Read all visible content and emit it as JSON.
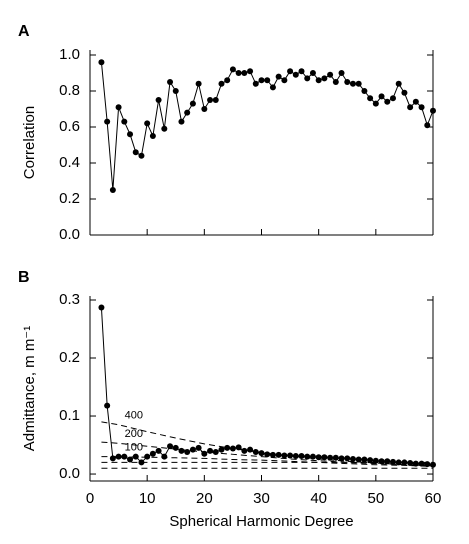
{
  "chart_data": [
    {
      "type": "line",
      "panel_label": "A",
      "ylabel": "Correlation",
      "x": [
        2,
        3,
        4,
        5,
        6,
        7,
        8,
        9,
        10,
        11,
        12,
        13,
        14,
        15,
        16,
        17,
        18,
        19,
        20,
        21,
        22,
        23,
        24,
        25,
        26,
        27,
        28,
        29,
        30,
        31,
        32,
        33,
        34,
        35,
        36,
        37,
        38,
        39,
        40,
        41,
        42,
        43,
        44,
        45,
        46,
        47,
        48,
        49,
        50,
        51,
        52,
        53,
        54,
        55,
        56,
        57,
        58,
        59,
        60
      ],
      "series": [
        {
          "color": "#000000",
          "markers": true,
          "values": [
            0.96,
            0.63,
            0.25,
            0.71,
            0.63,
            0.56,
            0.46,
            0.44,
            0.62,
            0.55,
            0.75,
            0.59,
            0.85,
            0.8,
            0.63,
            0.68,
            0.73,
            0.84,
            0.7,
            0.75,
            0.75,
            0.84,
            0.86,
            0.92,
            0.9,
            0.9,
            0.91,
            0.84,
            0.86,
            0.86,
            0.82,
            0.88,
            0.86,
            0.91,
            0.89,
            0.91,
            0.87,
            0.9,
            0.86,
            0.87,
            0.89,
            0.85,
            0.9,
            0.85,
            0.84,
            0.84,
            0.8,
            0.76,
            0.73,
            0.77,
            0.74,
            0.76,
            0.84,
            0.79,
            0.71,
            0.74,
            0.71,
            0.61,
            0.69
          ]
        }
      ],
      "xlim": [
        0,
        60
      ],
      "xticks": [
        0,
        10,
        20,
        30,
        40,
        50,
        60
      ],
      "show_xtick_labels": false,
      "ylim": [
        0,
        1.0
      ],
      "yticks": [
        {
          "value": 0,
          "label": "0.0"
        },
        0.2,
        0.4,
        0.6,
        0.8,
        {
          "value": 1,
          "label": "1.0"
        }
      ]
    },
    {
      "type": "line",
      "panel_label": "B",
      "ylabel": "Admittance, m m⁻¹",
      "xlabel": "Spherical Harmonic Degree",
      "x": [
        2,
        3,
        4,
        5,
        6,
        7,
        8,
        9,
        10,
        11,
        12,
        13,
        14,
        15,
        16,
        17,
        18,
        19,
        20,
        21,
        22,
        23,
        24,
        25,
        26,
        27,
        28,
        29,
        30,
        31,
        32,
        33,
        34,
        35,
        36,
        37,
        38,
        39,
        40,
        41,
        42,
        43,
        44,
        45,
        46,
        47,
        48,
        49,
        50,
        51,
        52,
        53,
        54,
        55,
        56,
        57,
        58,
        59,
        60
      ],
      "series": [
        {
          "color": "#000000",
          "markers": true,
          "values": [
            0.287,
            0.118,
            0.027,
            0.03,
            0.03,
            0.025,
            0.03,
            0.02,
            0.03,
            0.035,
            0.04,
            0.03,
            0.048,
            0.045,
            0.04,
            0.038,
            0.042,
            0.045,
            0.035,
            0.04,
            0.038,
            0.042,
            0.045,
            0.044,
            0.046,
            0.04,
            0.042,
            0.038,
            0.036,
            0.034,
            0.033,
            0.033,
            0.032,
            0.032,
            0.031,
            0.031,
            0.03,
            0.03,
            0.029,
            0.029,
            0.028,
            0.028,
            0.027,
            0.027,
            0.026,
            0.025,
            0.025,
            0.024,
            0.023,
            0.022,
            0.022,
            0.021,
            0.02,
            0.02,
            0.019,
            0.018,
            0.018,
            0.017,
            0.016
          ]
        },
        {
          "name": "400",
          "color": "#000000",
          "dashed": true,
          "x": [
            2,
            5,
            10,
            15,
            20,
            25,
            30,
            35,
            40,
            45,
            50,
            55,
            60
          ],
          "values": [
            0.09,
            0.085,
            0.073,
            0.062,
            0.052,
            0.044,
            0.037,
            0.031,
            0.026,
            0.022,
            0.019,
            0.016,
            0.014
          ]
        },
        {
          "name": "200",
          "color": "#000000",
          "dashed": true,
          "x": [
            2,
            5,
            10,
            15,
            20,
            25,
            30,
            35,
            40,
            45,
            50,
            55,
            60
          ],
          "values": [
            0.055,
            0.053,
            0.048,
            0.043,
            0.038,
            0.034,
            0.03,
            0.026,
            0.023,
            0.02,
            0.018,
            0.016,
            0.014
          ]
        },
        {
          "name": "100",
          "color": "#000000",
          "dashed": true,
          "x": [
            2,
            5,
            10,
            15,
            20,
            25,
            30,
            35,
            40,
            45,
            50,
            55,
            60
          ],
          "values": [
            0.03,
            0.03,
            0.029,
            0.028,
            0.027,
            0.025,
            0.024,
            0.022,
            0.02,
            0.018,
            0.016,
            0.015,
            0.013
          ]
        },
        {
          "color": "#000000",
          "dashed": true,
          "x": [
            2,
            60
          ],
          "values": [
            0.02,
            0.02
          ]
        },
        {
          "color": "#000000",
          "dashed": true,
          "x": [
            2,
            60
          ],
          "values": [
            0.01,
            0.01
          ]
        }
      ],
      "xlim": [
        0,
        60
      ],
      "xticks": [
        0,
        10,
        20,
        30,
        40,
        50,
        60
      ],
      "show_xtick_labels": true,
      "ylim": [
        -0.012,
        0.3
      ],
      "yticks": [
        {
          "value": 0,
          "label": "0.0"
        },
        0.1,
        0.2,
        0.3
      ]
    }
  ]
}
